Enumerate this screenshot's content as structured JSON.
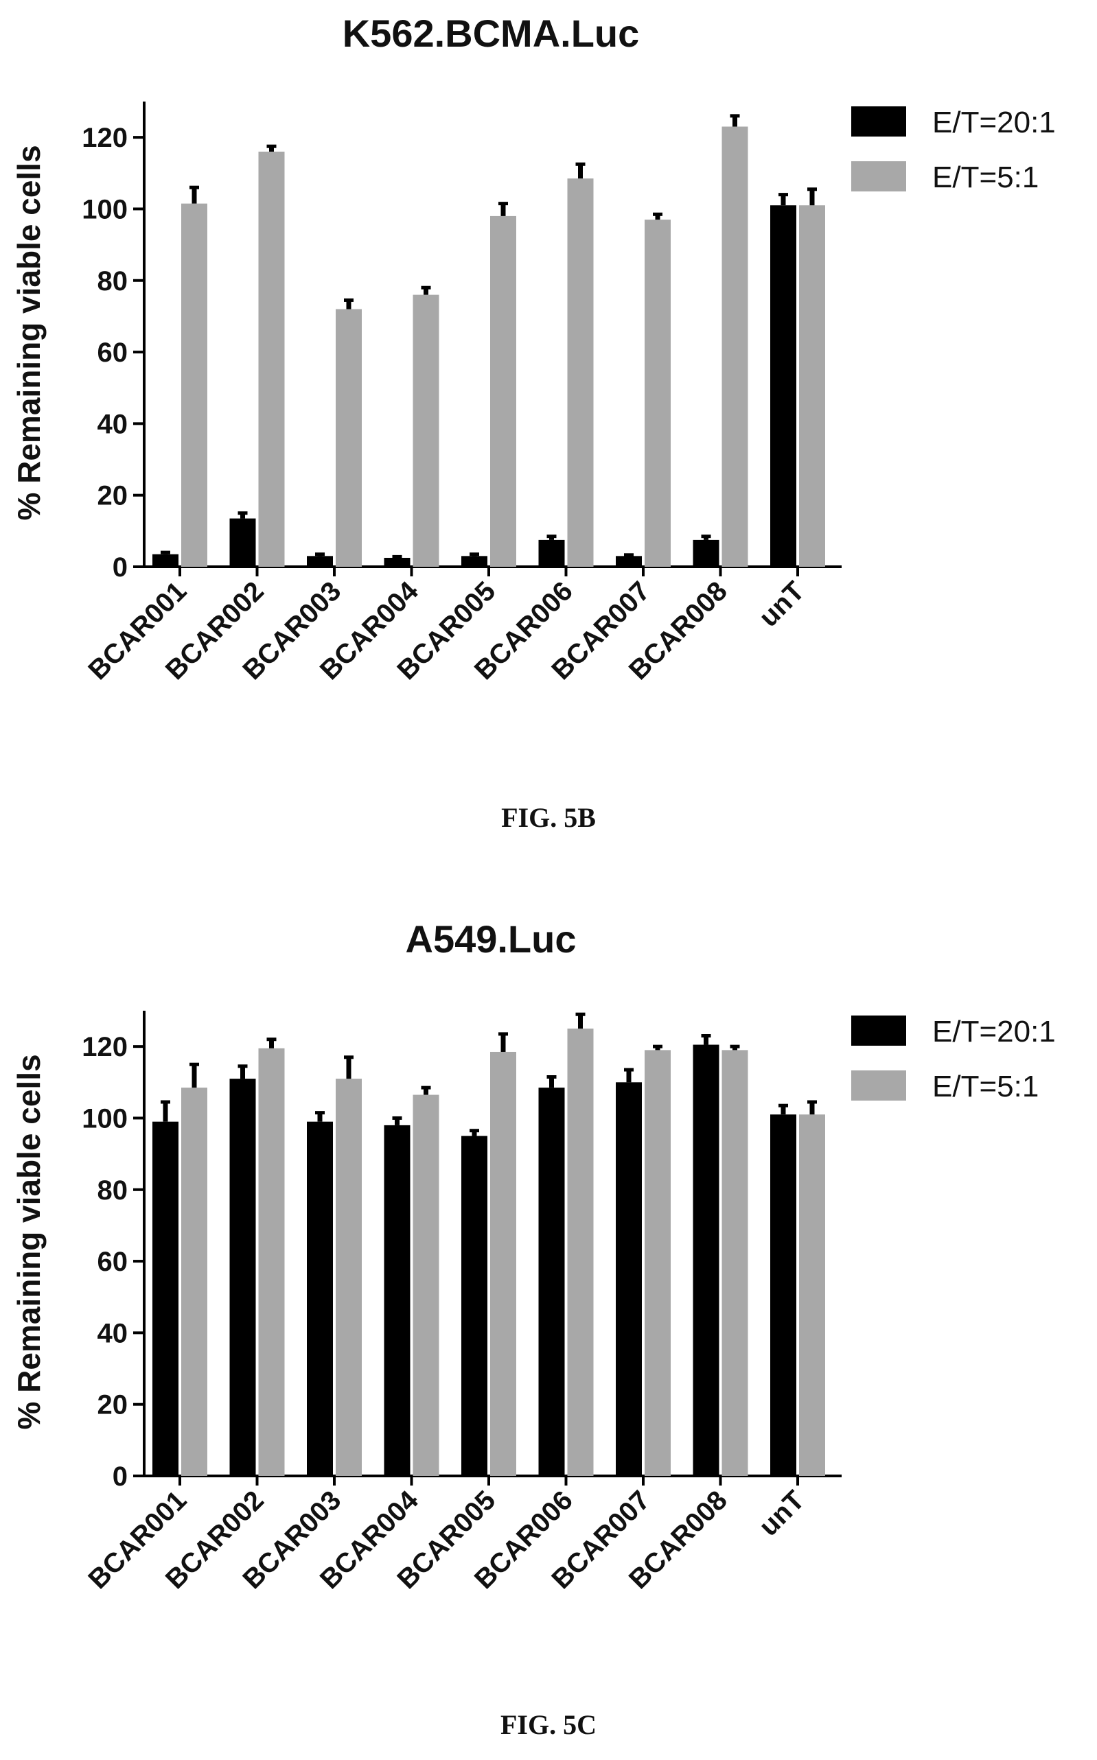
{
  "chart_data": [
    {
      "type": "bar",
      "title": "K562.BCMA.Luc",
      "ylabel": "% Remaining viable cells",
      "ylim": [
        0,
        130
      ],
      "yticks": [
        "0",
        "20",
        "40",
        "60",
        "80",
        "100",
        "120"
      ],
      "categories": [
        "BCAR001",
        "BCAR002",
        "BCAR003",
        "BCAR004",
        "BCAR005",
        "BCAR006",
        "BCAR007",
        "BCAR008",
        "unT"
      ],
      "series": [
        {
          "name": "E/T=20:1",
          "color": "#000000",
          "values": [
            3.5,
            13.5,
            3,
            2.5,
            3,
            7.5,
            3,
            7.5,
            101
          ],
          "errors": [
            0.5,
            1.5,
            0.5,
            0.3,
            0.5,
            1,
            0.3,
            1,
            3
          ]
        },
        {
          "name": "E/T=5:1",
          "color": "#a8a8a8",
          "values": [
            101.5,
            116,
            72,
            76,
            98,
            108.5,
            97,
            123,
            101
          ],
          "errors": [
            4.5,
            1.5,
            2.5,
            2,
            3.5,
            4,
            1.5,
            3,
            4.5
          ]
        }
      ],
      "legend_position": "top-right",
      "caption": "FIG. 5B"
    },
    {
      "type": "bar",
      "title": "A549.Luc",
      "ylabel": "% Remaining viable cells",
      "ylim": [
        0,
        130
      ],
      "yticks": [
        "0",
        "20",
        "40",
        "60",
        "80",
        "100",
        "120"
      ],
      "categories": [
        "BCAR001",
        "BCAR002",
        "BCAR003",
        "BCAR004",
        "BCAR005",
        "BCAR006",
        "BCAR007",
        "BCAR008",
        "unT"
      ],
      "series": [
        {
          "name": "E/T=20:1",
          "color": "#000000",
          "values": [
            99,
            111,
            99,
            98,
            95,
            108.5,
            110,
            120.5,
            101
          ],
          "errors": [
            5.5,
            3.5,
            2.5,
            2,
            1.5,
            3,
            3.5,
            2.5,
            2.5
          ]
        },
        {
          "name": "E/T=5:1",
          "color": "#a8a8a8",
          "values": [
            108.5,
            119.5,
            111,
            106.5,
            118.5,
            125,
            119,
            119,
            101
          ],
          "errors": [
            6.5,
            2.5,
            6,
            2,
            5,
            4,
            1,
            1,
            3.5
          ]
        }
      ],
      "legend_position": "top-right",
      "caption": "FIG. 5C"
    }
  ]
}
